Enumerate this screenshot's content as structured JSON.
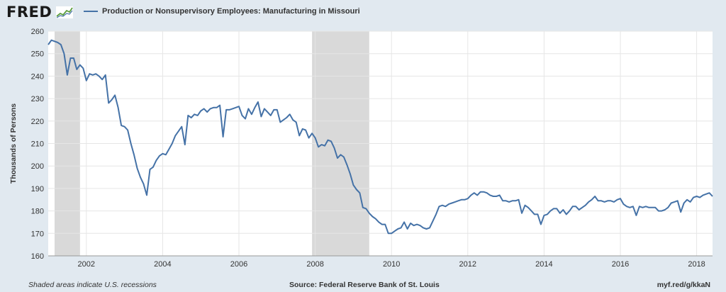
{
  "header": {
    "logo_text": "FRED",
    "logo_icon": "line-chart-icon",
    "legend_label": "Production or Nonsupervisory Employees: Manufacturing in Missouri"
  },
  "footer": {
    "note": "Shaded areas indicate U.S. recessions",
    "source": "Source: Federal Reserve Bank of St. Louis",
    "url": "myf.red/g/kkaN"
  },
  "colors": {
    "background": "#e1e9f0",
    "plot_background": "#ffffff",
    "series": "#4572a7",
    "recession": "#d9d9d9",
    "grid": "#e6e6e6"
  },
  "chart_data": {
    "type": "line",
    "ylabel": "Thousands of Persons",
    "ylim": [
      160,
      260
    ],
    "xlim": [
      "2001-01",
      "2018-06"
    ],
    "y_ticks": [
      160,
      170,
      180,
      190,
      200,
      210,
      220,
      230,
      240,
      250,
      260
    ],
    "x_ticks": [
      "2002",
      "2004",
      "2006",
      "2008",
      "2010",
      "2012",
      "2014",
      "2016",
      "2018"
    ],
    "grid": true,
    "recessions": [
      {
        "start": "2001-03",
        "end": "2001-11"
      },
      {
        "start": "2007-12",
        "end": "2009-06"
      }
    ],
    "series": [
      {
        "name": "Production or Nonsupervisory Employees: Manufacturing in Missouri",
        "x": [
          "2001-01",
          "2001-02",
          "2001-03",
          "2001-04",
          "2001-05",
          "2001-06",
          "2001-07",
          "2001-08",
          "2001-09",
          "2001-10",
          "2001-11",
          "2001-12",
          "2002-01",
          "2002-02",
          "2002-03",
          "2002-04",
          "2002-05",
          "2002-06",
          "2002-07",
          "2002-08",
          "2002-09",
          "2002-10",
          "2002-11",
          "2002-12",
          "2003-01",
          "2003-02",
          "2003-03",
          "2003-04",
          "2003-05",
          "2003-06",
          "2003-07",
          "2003-08",
          "2003-09",
          "2003-10",
          "2003-11",
          "2003-12",
          "2004-01",
          "2004-02",
          "2004-03",
          "2004-04",
          "2004-05",
          "2004-06",
          "2004-07",
          "2004-08",
          "2004-09",
          "2004-10",
          "2004-11",
          "2004-12",
          "2005-01",
          "2005-02",
          "2005-03",
          "2005-04",
          "2005-05",
          "2005-06",
          "2005-07",
          "2005-08",
          "2005-09",
          "2005-10",
          "2005-11",
          "2005-12",
          "2006-01",
          "2006-02",
          "2006-03",
          "2006-04",
          "2006-05",
          "2006-06",
          "2006-07",
          "2006-08",
          "2006-09",
          "2006-10",
          "2006-11",
          "2006-12",
          "2007-01",
          "2007-02",
          "2007-03",
          "2007-04",
          "2007-05",
          "2007-06",
          "2007-07",
          "2007-08",
          "2007-09",
          "2007-10",
          "2007-11",
          "2007-12",
          "2008-01",
          "2008-02",
          "2008-03",
          "2008-04",
          "2008-05",
          "2008-06",
          "2008-07",
          "2008-08",
          "2008-09",
          "2008-10",
          "2008-11",
          "2008-12",
          "2009-01",
          "2009-02",
          "2009-03",
          "2009-04",
          "2009-05",
          "2009-06",
          "2009-07",
          "2009-08",
          "2009-09",
          "2009-10",
          "2009-11",
          "2009-12",
          "2010-01",
          "2010-02",
          "2010-03",
          "2010-04",
          "2010-05",
          "2010-06",
          "2010-07",
          "2010-08",
          "2010-09",
          "2010-10",
          "2010-11",
          "2010-12",
          "2011-01",
          "2011-02",
          "2011-03",
          "2011-04",
          "2011-05",
          "2011-06",
          "2011-07",
          "2011-08",
          "2011-09",
          "2011-10",
          "2011-11",
          "2011-12",
          "2012-01",
          "2012-02",
          "2012-03",
          "2012-04",
          "2012-05",
          "2012-06",
          "2012-07",
          "2012-08",
          "2012-09",
          "2012-10",
          "2012-11",
          "2012-12",
          "2013-01",
          "2013-02",
          "2013-03",
          "2013-04",
          "2013-05",
          "2013-06",
          "2013-07",
          "2013-08",
          "2013-09",
          "2013-10",
          "2013-11",
          "2013-12",
          "2014-01",
          "2014-02",
          "2014-03",
          "2014-04",
          "2014-05",
          "2014-06",
          "2014-07",
          "2014-08",
          "2014-09",
          "2014-10",
          "2014-11",
          "2014-12",
          "2015-01",
          "2015-02",
          "2015-03",
          "2015-04",
          "2015-05",
          "2015-06",
          "2015-07",
          "2015-08",
          "2015-09",
          "2015-10",
          "2015-11",
          "2015-12",
          "2016-01",
          "2016-02",
          "2016-03",
          "2016-04",
          "2016-05",
          "2016-06",
          "2016-07",
          "2016-08",
          "2016-09",
          "2016-10",
          "2016-11",
          "2016-12",
          "2017-01",
          "2017-02",
          "2017-03",
          "2017-04",
          "2017-05",
          "2017-06",
          "2017-07",
          "2017-08",
          "2017-09",
          "2017-10",
          "2017-11",
          "2017-12",
          "2018-01",
          "2018-02",
          "2018-03",
          "2018-04",
          "2018-05",
          "2018-06"
        ],
        "values": [
          254,
          256,
          255.5,
          255,
          254,
          250,
          240.5,
          248,
          248,
          243,
          245,
          243.5,
          238,
          241,
          240.5,
          241,
          240,
          238.5,
          240.5,
          228,
          229.5,
          231.5,
          226,
          218,
          217.5,
          216,
          210,
          205,
          199,
          195,
          192,
          187,
          198.5,
          199.5,
          202.5,
          204.5,
          205.5,
          205,
          207.5,
          210,
          213.5,
          215.5,
          217.5,
          209.5,
          222.5,
          221.5,
          223,
          222.5,
          224.5,
          225.5,
          224,
          225.5,
          226,
          226,
          227,
          213,
          225,
          225,
          225.5,
          226,
          226.5,
          222.5,
          221,
          225.5,
          223,
          226,
          228.5,
          222,
          225.5,
          224,
          222.5,
          225,
          225,
          219.5,
          220.5,
          221.5,
          223,
          220.5,
          219.5,
          213.5,
          216.5,
          216,
          212.5,
          214.5,
          212.5,
          208.5,
          209.5,
          209,
          211.5,
          211,
          208,
          203.5,
          205,
          204,
          200.5,
          196.5,
          191.5,
          189.5,
          188,
          181.5,
          181,
          179,
          177.5,
          176.5,
          175,
          174,
          174,
          170,
          170,
          171,
          172,
          172.5,
          175,
          172,
          174.5,
          173.5,
          174,
          173.5,
          172.5,
          172,
          172.5,
          175.5,
          178.5,
          182,
          182.5,
          182,
          183,
          183.5,
          184,
          184.5,
          185,
          185,
          185.5,
          187,
          188,
          187,
          188.5,
          188.5,
          188,
          187,
          186.5,
          186.5,
          187,
          184.5,
          184.5,
          184,
          184.5,
          184.5,
          185,
          179,
          182.5,
          181.5,
          180,
          178.5,
          178.5,
          174,
          178,
          178.5,
          180,
          181,
          181,
          179,
          180.5,
          178.5,
          180,
          182,
          182,
          180.5,
          181.5,
          182.5,
          184,
          185,
          186.5,
          184.5,
          184.5,
          184,
          184.5,
          184.5,
          184,
          185,
          185.5,
          183,
          182,
          181.5,
          182,
          178,
          182,
          181.5,
          182,
          181.5,
          181.5,
          181.5,
          180,
          180,
          180.5,
          181.5,
          183.5,
          184,
          184.5,
          179.5,
          183.5,
          185,
          184,
          186,
          186.5,
          186,
          187,
          187.5,
          188,
          186.5
        ]
      }
    ]
  }
}
